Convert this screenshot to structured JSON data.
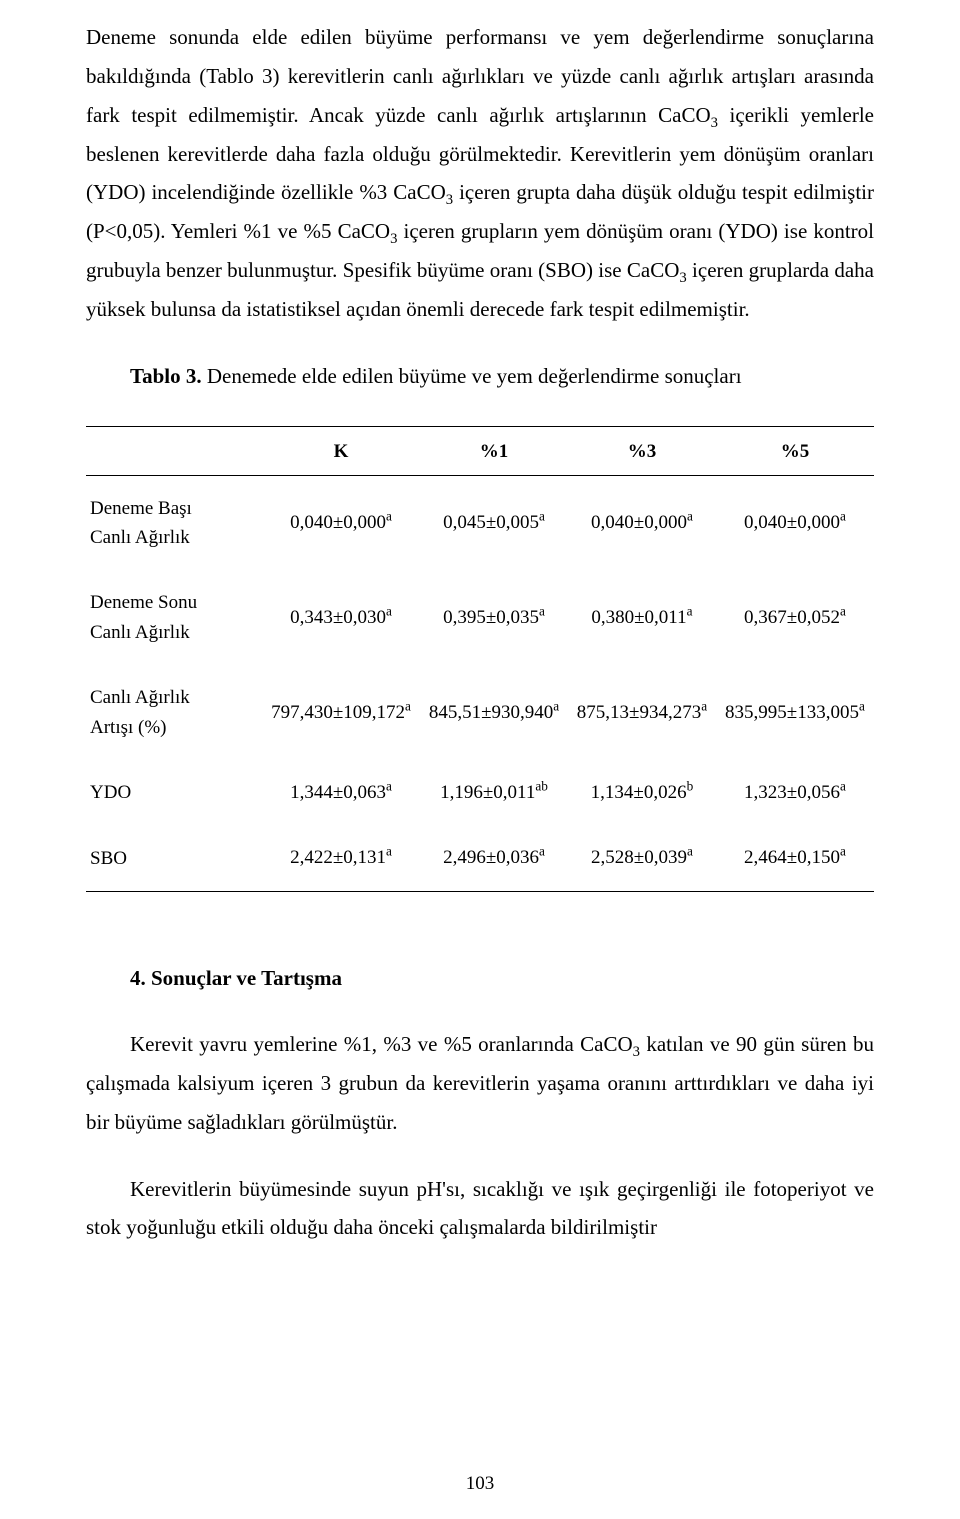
{
  "paragraphs": {
    "p1_html": "Deneme sonunda elde edilen büyüme performansı ve yem değerlendirme sonuçlarına bakıldığında (Tablo 3) kerevitlerin canlı ağırlıkları ve yüzde canlı ağırlık artışları arasında fark tespit edilmemiştir. Ancak yüzde canlı ağırlık artışlarının CaCO<sub>3</sub> içerikli yemlerle beslenen kerevitlerde daha fazla olduğu görülmektedir. Kerevitlerin yem dönüşüm oranları (YDO) incelendiğinde özellikle %3 CaCO<sub>3</sub> içeren grupta daha düşük olduğu tespit edilmiştir (P&lt;0,05). Yemleri %1 ve %5 CaCO<sub>3</sub> içeren grupların yem dönüşüm oranı (YDO) ise kontrol grubuyla benzer bulunmuştur. Spesifik büyüme oranı (SBO) ise CaCO<sub>3</sub> içeren gruplarda daha yüksek bulunsa da istatistiksel açıdan önemli derecede fark tespit edilmemiştir."
  },
  "table_caption": {
    "label": "Tablo 3.",
    "text": " Denemede elde edilen büyüme ve yem değerlendirme sonuçları"
  },
  "table": {
    "headers": [
      "K",
      "%1",
      "%3",
      "%5"
    ],
    "rows": [
      {
        "label": "Deneme Başı\nCanlı Ağırlık",
        "cells_html": [
          "0,040±0,000<sup>a</sup>",
          "0,045±0,005<sup>a</sup>",
          "0,040±0,000<sup>a</sup>",
          "0,040±0,000<sup>a</sup>"
        ]
      },
      {
        "label": "Deneme Sonu\nCanlı Ağırlık",
        "cells_html": [
          "0,343±0,030<sup>a</sup>",
          "0,395±0,035<sup>a</sup>",
          "0,380±0,011<sup>a</sup>",
          "0,367±0,052<sup>a</sup>"
        ]
      },
      {
        "label": "Canlı Ağırlık\nArtışı (%)",
        "cells_html": [
          "797,430±109,172<sup>a</sup>",
          "845,51±930,940<sup>a</sup>",
          "875,13±934,273<sup>a</sup>",
          "835,995±133,005<sup>a</sup>"
        ]
      },
      {
        "label": "YDO",
        "cells_html": [
          "1,344±0,063<sup>a</sup>",
          "1,196±0,011<sup>ab</sup>",
          "1,134±0,026<sup>b</sup>",
          "1,323±0,056<sup>a</sup>"
        ]
      },
      {
        "label": "SBO",
        "cells_html": [
          "2,422±0,131<sup>a</sup>",
          "2,496±0,036<sup>a</sup>",
          "2,528±0,039<sup>a</sup>",
          "2,464±0,150<sup>a</sup>"
        ]
      }
    ]
  },
  "section4": {
    "heading": "4. Sonuçlar ve Tartışma",
    "p1_html": "Kerevit yavru yemlerine %1, %3 ve %5 oranlarında CaCO<sub>3</sub> katılan ve 90 gün süren bu çalışmada kalsiyum içeren 3 grubun da kerevitlerin yaşama oranını arttırdıkları ve daha iyi bir büyüme sağladıkları görülmüştür.",
    "p2_html": "Kerevitlerin büyümesinde suyun pH'sı, sıcaklığı ve ışık geçirgenliği ile fotoperiyot ve stok yoğunluğu etkili olduğu daha önceki çalışmalarda bildirilmiştir"
  },
  "page_number": "103"
}
